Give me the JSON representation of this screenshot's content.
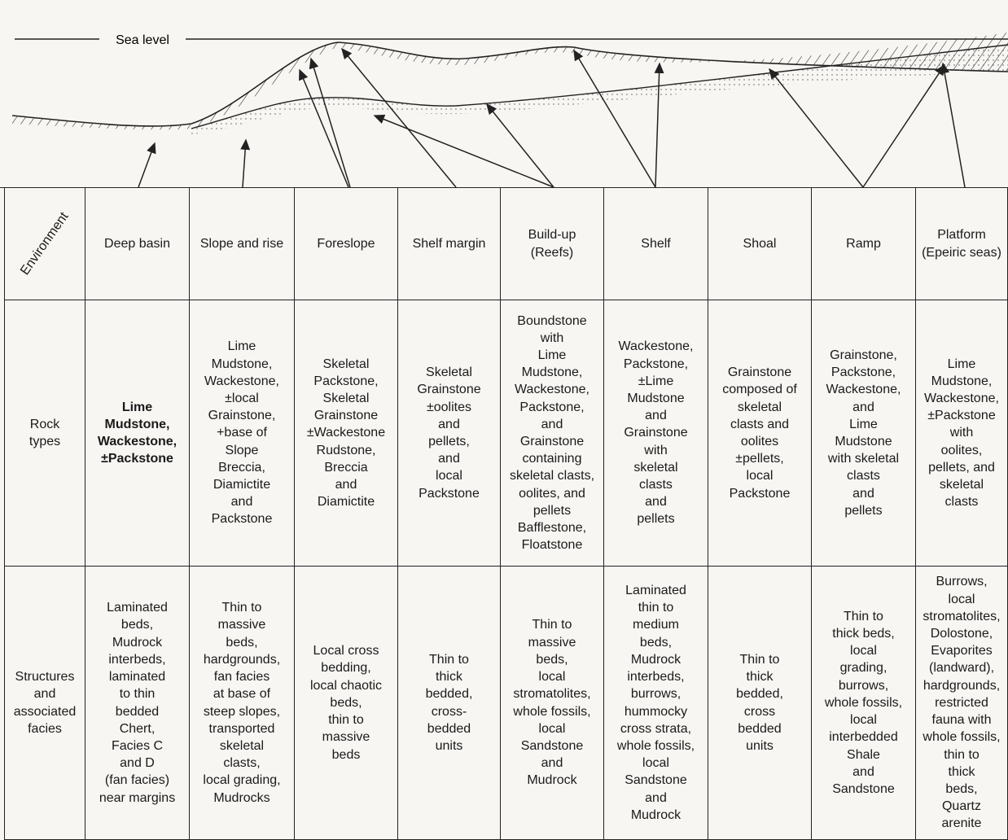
{
  "diagram": {
    "sea_level": "Sea level"
  },
  "table": {
    "row_labels": [
      "Environment",
      "Rock\ntypes",
      "Structures\nand\nassociated\nfacies"
    ],
    "columns": [
      {
        "environment": "Deep basin",
        "rock_types": "Lime\nMudstone,\nWackestone,\n±Packstone",
        "structures": "Laminated\nbeds,\nMudrock\ninterbeds,\nlaminated\nto thin\nbedded\nChert,\nFacies C\nand D\n(fan facies)\nnear margins"
      },
      {
        "environment": "Slope and rise",
        "rock_types": "Lime\nMudstone,\nWackestone,\n±local\nGrainstone,\n+base of\nSlope\nBreccia,\nDiamictite\nand\nPackstone",
        "structures": "Thin to\nmassive\nbeds,\nhardgrounds,\nfan facies\nat base of\nsteep slopes,\ntransported\nskeletal\nclasts,\nlocal grading,\nMudrocks"
      },
      {
        "environment": "Foreslope",
        "rock_types": "Skeletal\nPackstone,\nSkeletal\nGrainstone\n±Wackestone\nRudstone,\nBreccia\nand\nDiamictite",
        "structures": "Local cross\nbedding,\nlocal chaotic\nbeds,\nthin to\nmassive\nbeds"
      },
      {
        "environment": "Shelf margin",
        "rock_types": "Skeletal\nGrainstone\n±oolites\nand\npellets,\nand\nlocal\nPackstone",
        "structures": "Thin to\nthick\nbedded,\ncross-\nbedded\nunits"
      },
      {
        "environment": "Build-up\n(Reefs)",
        "rock_types": "Boundstone\nwith\nLime\nMudstone,\nWackestone,\nPackstone,\nand\nGrainstone\ncontaining\nskeletal clasts,\noolites, and\npellets\nBafflestone,\nFloatstone",
        "structures": "Thin to\nmassive\nbeds,\nlocal\nstromatolites,\nwhole fossils,\nlocal\nSandstone\nand\nMudrock"
      },
      {
        "environment": "Shelf",
        "rock_types": "Wackestone,\nPackstone,\n±Lime\nMudstone\nand\nGrainstone\nwith\nskeletal\nclasts\nand\npellets",
        "structures": "Laminated\nthin to\nmedium\nbeds,\nMudrock\ninterbeds,\nburrows,\nhummocky\ncross strata,\nwhole fossils,\nlocal\nSandstone\nand\nMudrock"
      },
      {
        "environment": "Shoal",
        "rock_types": "Grainstone\ncomposed of\nskeletal\nclasts and\noolites\n±pellets,\nlocal\nPackstone",
        "structures": "Thin to\nthick\nbedded,\ncross\nbedded\nunits"
      },
      {
        "environment": "Ramp",
        "rock_types": "Grainstone,\nPackstone,\nWackestone,\nand\nLime\nMudstone\nwith skeletal\nclasts\nand\npellets",
        "structures": "Thin to\nthick beds,\nlocal\ngrading,\nburrows,\nwhole fossils,\nlocal\ninterbedded\nShale\nand\nSandstone"
      },
      {
        "environment": "Platform\n(Epeiric seas)",
        "rock_types": "Lime\nMudstone,\nWackestone,\n±Packstone\nwith\noolites,\npellets, and\nskeletal\nclasts",
        "structures": "Burrows,\nlocal\nstromatolites,\nDolostone,\nEvaporites\n(landward),\nhardgrounds,\nrestricted\nfauna with\nwhole fossils,\nthin to\nthick\nbeds,\nQuartz\narenite"
      }
    ]
  }
}
